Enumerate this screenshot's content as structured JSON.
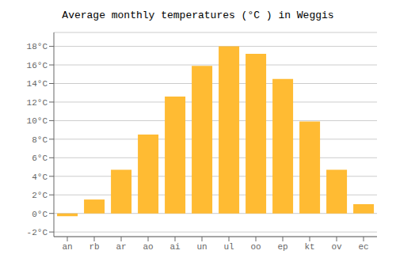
{
  "chart_data": {
    "type": "bar",
    "title": "Average monthly temperatures (°C ) in Weggis",
    "categories": [
      "an",
      "rb",
      "ar",
      "ao",
      "ai",
      "un",
      "ul",
      "oo",
      "ep",
      "kt",
      "ov",
      "ec"
    ],
    "values": [
      -0.3,
      1.5,
      4.7,
      8.5,
      12.6,
      15.9,
      18.0,
      17.2,
      14.5,
      9.9,
      4.7,
      1.0
    ],
    "color": "#FFBB33",
    "ylim": [
      -2.5,
      19.5
    ],
    "yticks": [
      {
        "value": -2,
        "label": "-2°C"
      },
      {
        "value": 0,
        "label": "0°C"
      },
      {
        "value": 2,
        "label": "2°C"
      },
      {
        "value": 4,
        "label": "4°C"
      },
      {
        "value": 6,
        "label": "6°C"
      },
      {
        "value": 8,
        "label": "8°C"
      },
      {
        "value": 10,
        "label": "10°C"
      },
      {
        "value": 12,
        "label": "12°C"
      },
      {
        "value": 14,
        "label": "14°C"
      },
      {
        "value": 16,
        "label": "16°C"
      },
      {
        "value": 18,
        "label": "18°C"
      }
    ],
    "grid": true
  }
}
